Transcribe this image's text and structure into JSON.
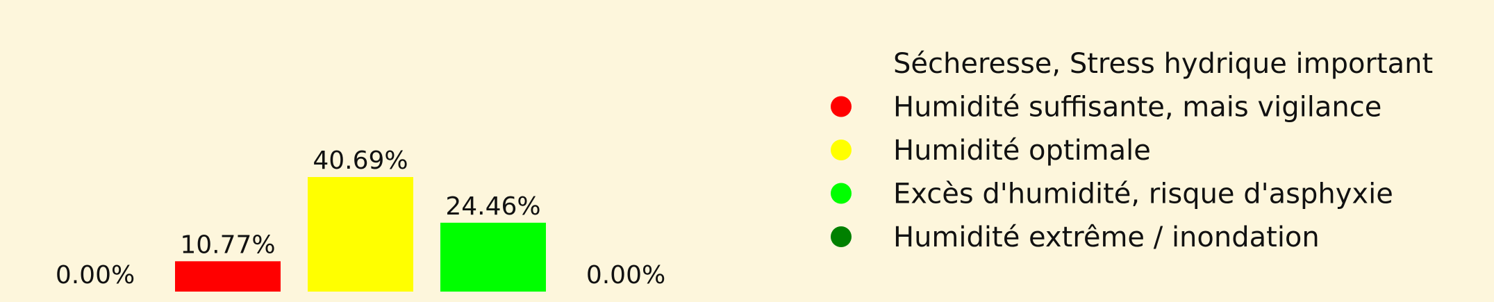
{
  "chart_data": {
    "type": "bar",
    "categories": [
      "Sécheresse, Stress hydrique important",
      "Humidité suffisante, mais vigilance",
      "Humidité optimale",
      "Excès d'humidité, risque d'asphyxie",
      "Humidité extrême / inondation"
    ],
    "values": [
      0.0,
      10.77,
      40.69,
      24.46,
      0.0
    ],
    "data_labels": [
      "0.00%",
      "10.77%",
      "40.69%",
      "24.46%",
      "0.00%"
    ],
    "colors": [
      "#fdf6dc",
      "#ff0000",
      "#ffff00",
      "#00ff00",
      "#008000"
    ],
    "ylim": [
      0,
      100
    ],
    "grid": false,
    "legend": {
      "placement": "right",
      "entries": [
        "Sécheresse, Stress hydrique important",
        "Humidité suffisante, mais vigilance",
        "Humidité optimale",
        "Excès d'humidité, risque d'asphyxie",
        "Humidité extrême / inondation"
      ]
    },
    "background_color": "#fdf6dc"
  }
}
